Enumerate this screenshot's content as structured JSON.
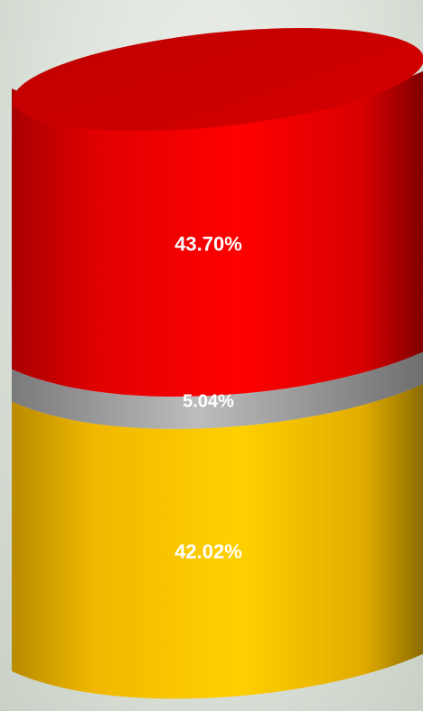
{
  "chart_data": {
    "type": "stacked-cylinder",
    "segments": [
      {
        "label": "42.02%",
        "value": 42.02,
        "color": "#f5c400"
      },
      {
        "label": "5.04%",
        "value": 5.04,
        "color": "#a8a8a8"
      },
      {
        "label": "43.70%",
        "value": 43.7,
        "color": "#ee0000"
      }
    ]
  }
}
